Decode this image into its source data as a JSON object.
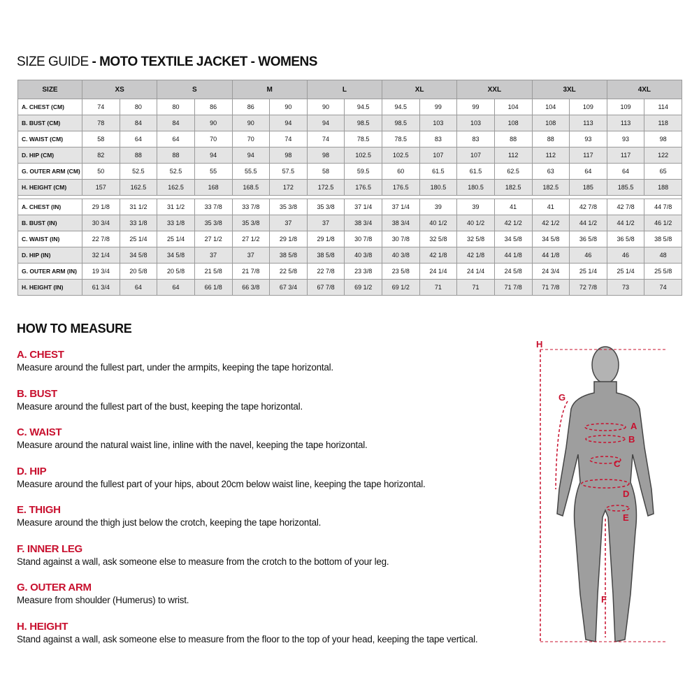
{
  "header": {
    "title_light": "SIZE GUIDE",
    "title_bold": "- MOTO TEXTILE JACKET - WOMENS"
  },
  "table": {
    "size_header": "SIZE",
    "sizes": [
      "XS",
      "S",
      "M",
      "L",
      "XL",
      "XXL",
      "3XL",
      "4XL"
    ],
    "cm_rows": [
      {
        "label": "A. CHEST (CM)",
        "values": [
          74,
          80,
          80,
          86,
          86,
          90,
          90,
          94.5,
          94.5,
          99,
          99,
          104,
          104,
          109,
          109,
          114
        ]
      },
      {
        "label": "B. BUST (CM)",
        "values": [
          78,
          84,
          84,
          90,
          90,
          94,
          94,
          98.5,
          98.5,
          103,
          103,
          108,
          108,
          113,
          113,
          118
        ]
      },
      {
        "label": "C. WAIST (CM)",
        "values": [
          58,
          64,
          64,
          70,
          70,
          74,
          74,
          78.5,
          78.5,
          83,
          83,
          88,
          88,
          93,
          93,
          98
        ]
      },
      {
        "label": "D. HIP (CM)",
        "values": [
          82,
          88,
          88,
          94,
          94,
          98,
          98,
          102.5,
          102.5,
          107,
          107,
          112,
          112,
          117,
          117,
          122
        ]
      },
      {
        "label": "G. OUTER ARM (CM)",
        "values": [
          50,
          52.5,
          52.5,
          55,
          55.5,
          57.5,
          58,
          59.5,
          60,
          61.5,
          61.5,
          62.5,
          63,
          64,
          64,
          65
        ]
      },
      {
        "label": "H. HEIGHT (CM)",
        "values": [
          157,
          162.5,
          162.5,
          168,
          168.5,
          172,
          172.5,
          176.5,
          176.5,
          180.5,
          180.5,
          182.5,
          182.5,
          185,
          185.5,
          188
        ]
      }
    ],
    "in_rows": [
      {
        "label": "A. CHEST (IN)",
        "values": [
          "29 1/8",
          "31 1/2",
          "31 1/2",
          "33 7/8",
          "33 7/8",
          "35 3/8",
          "35 3/8",
          "37 1/4",
          "37 1/4",
          "39",
          "39",
          "41",
          "41",
          "42 7/8",
          "42 7/8",
          "44 7/8"
        ]
      },
      {
        "label": "B. BUST (IN)",
        "values": [
          "30 3/4",
          "33 1/8",
          "33 1/8",
          "35 3/8",
          "35 3/8",
          "37",
          "37",
          "38 3/4",
          "38 3/4",
          "40 1/2",
          "40 1/2",
          "42 1/2",
          "42 1/2",
          "44 1/2",
          "44 1/2",
          "46 1/2"
        ]
      },
      {
        "label": "C. WAIST (IN)",
        "values": [
          "22 7/8",
          "25 1/4",
          "25 1/4",
          "27 1/2",
          "27 1/2",
          "29 1/8",
          "29 1/8",
          "30 7/8",
          "30 7/8",
          "32 5/8",
          "32 5/8",
          "34 5/8",
          "34 5/8",
          "36 5/8",
          "36 5/8",
          "38 5/8"
        ]
      },
      {
        "label": "D. HIP (IN)",
        "values": [
          "32 1/4",
          "34 5/8",
          "34 5/8",
          "37",
          "37",
          "38 5/8",
          "38 5/8",
          "40 3/8",
          "40 3/8",
          "42 1/8",
          "42 1/8",
          "44 1/8",
          "44 1/8",
          "46",
          "46",
          "48"
        ]
      },
      {
        "label": "G. OUTER ARM (IN)",
        "values": [
          "19 3/4",
          "20 5/8",
          "20 5/8",
          "21 5/8",
          "21 7/8",
          "22 5/8",
          "22 7/8",
          "23 3/8",
          "23 5/8",
          "24 1/4",
          "24 1/4",
          "24 5/8",
          "24 3/4",
          "25 1/4",
          "25 1/4",
          "25 5/8"
        ]
      },
      {
        "label": "H. HEIGHT (IN)",
        "values": [
          "61 3/4",
          "64",
          "64",
          "66 1/8",
          "66 3/8",
          "67 3/4",
          "67 7/8",
          "69 1/2",
          "69 1/2",
          "71",
          "71",
          "71 7/8",
          "71 7/8",
          "72 7/8",
          "73",
          "74"
        ]
      }
    ]
  },
  "how_to_measure": {
    "heading": "HOW TO MEASURE",
    "items": [
      {
        "title": "A. CHEST",
        "text": "Measure around the fullest part, under the armpits, keeping the tape horizontal."
      },
      {
        "title": "B. BUST",
        "text": "Measure around the fullest part of the bust, keeping the tape horizontal."
      },
      {
        "title": "C. WAIST",
        "text": "Measure around the natural waist line, inline with the navel, keeping the tape horizontal."
      },
      {
        "title": "D. HIP",
        "text": "Measure around the fullest part of your hips, about 20cm below waist line, keeping the tape horizontal."
      },
      {
        "title": "E. THIGH",
        "text": "Measure around the thigh just below the crotch, keeping the tape horizontal."
      },
      {
        "title": "F. INNER LEG",
        "text": "Stand against a wall, ask someone else to measure from the crotch to the bottom of your leg."
      },
      {
        "title": "G. OUTER ARM",
        "text": "Measure from shoulder (Humerus) to wrist."
      },
      {
        "title": "H. HEIGHT",
        "text": "Stand against a wall, ask someone else to measure from the floor to the top of your head, keeping the tape vertical."
      }
    ]
  },
  "figure": {
    "labels": [
      "H",
      "G",
      "A",
      "B",
      "C",
      "D",
      "E",
      "F"
    ]
  }
}
